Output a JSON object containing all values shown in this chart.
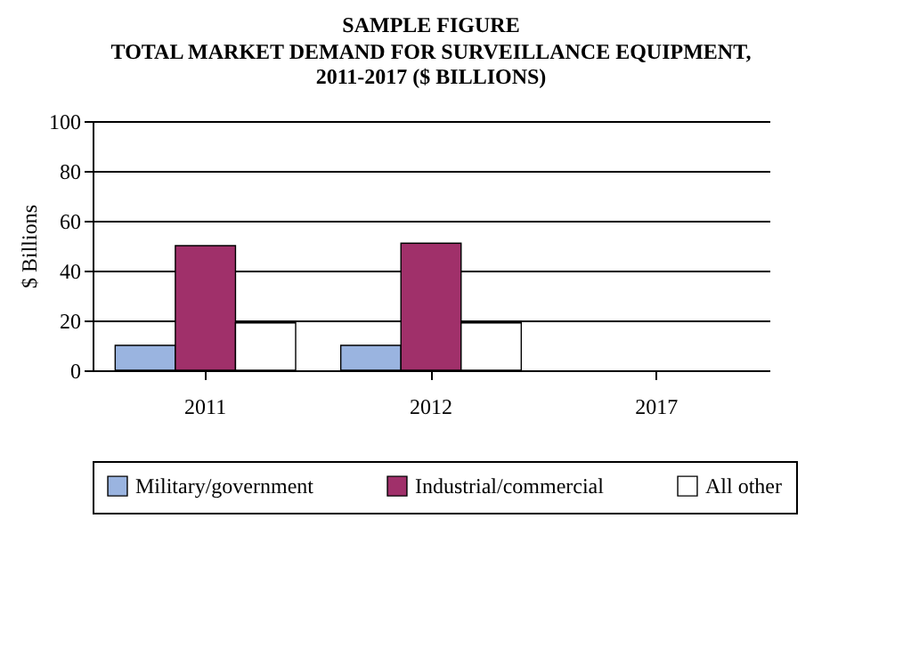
{
  "chart_data": {
    "type": "bar",
    "title": "SAMPLE FIGURE",
    "subtitle": "TOTAL MARKET DEMAND FOR SURVEILLANCE EQUIPMENT, 2011-2017 ($ BILLIONS)",
    "ylabel": "$ Billions",
    "categories": [
      "2011",
      "2012",
      "2017"
    ],
    "series": [
      {
        "name": "Military/government",
        "color": "#9ab4e0",
        "values": [
          10,
          10,
          null
        ]
      },
      {
        "name": "Industrial/commercial",
        "color": "#a0306a",
        "values": [
          50,
          51,
          null
        ]
      },
      {
        "name": "All other",
        "color": "#ffffff",
        "values": [
          19,
          19,
          null
        ]
      }
    ],
    "ylim": [
      0,
      100
    ],
    "yticks": [
      0,
      20,
      40,
      60,
      80,
      100
    ],
    "grid": "y",
    "legend": "bottom"
  }
}
